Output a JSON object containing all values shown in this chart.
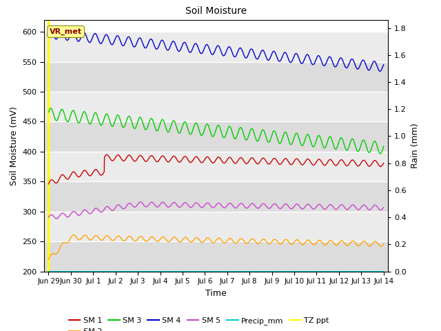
{
  "title": "Soil Moisture",
  "xlabel": "Time",
  "ylabel_left": "Soil Moisture (mV)",
  "ylabel_right": "Rain (mm)",
  "ylim_left": [
    200,
    620
  ],
  "ylim_right": [
    0.0,
    1.86
  ],
  "yticks_left": [
    200,
    250,
    300,
    350,
    400,
    450,
    500,
    550,
    600
  ],
  "yticks_right": [
    0.0,
    0.2,
    0.4,
    0.6,
    0.8,
    1.0,
    1.2,
    1.4,
    1.6,
    1.8
  ],
  "xtick_labels": [
    "Jun 29",
    "Jun 30",
    "Jul 1",
    "Jul 2",
    "Jul 3",
    "Jul 4",
    "Jul 5",
    "Jul 6",
    "Jul 7",
    "Jul 8",
    "Jul 9",
    "Jul 10",
    "Jul 11",
    "Jul 12",
    "Jul 13",
    "Jul 14"
  ],
  "xtick_positions": [
    0,
    1,
    2,
    3,
    4,
    5,
    6,
    7,
    8,
    9,
    10,
    11,
    12,
    13,
    14,
    15
  ],
  "vr_met_label": "VR_met",
  "annotation_color": "#8B0000",
  "annotation_bg": "#FFFF99",
  "colors": {
    "SM1": "#CC0000",
    "SM2": "#FFA500",
    "SM3": "#00CC00",
    "SM4": "#0000CC",
    "SM5": "#CC44CC",
    "Precip": "#00CCCC",
    "TZ_ppt": "#FFFF00"
  },
  "band_colors": [
    "#DCDCDC",
    "#EBEBEB"
  ],
  "n_points": 1440
}
